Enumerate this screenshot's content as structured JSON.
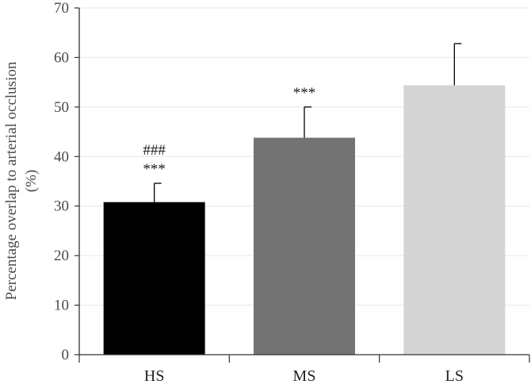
{
  "chart_data": {
    "type": "bar",
    "categories": [
      "HS",
      "MS",
      "LS"
    ],
    "values": [
      30.8,
      43.8,
      54.4
    ],
    "errors": [
      3.8,
      6.2,
      8.4
    ],
    "colors": [
      "#000000",
      "#737373",
      "#d4d4d4"
    ],
    "annotations": [
      [
        "###",
        "***"
      ],
      [
        "***"
      ],
      []
    ],
    "ylabel_lines": [
      "Percentage overlap to arterial occlusion",
      "(%)"
    ],
    "xlabel": "",
    "title": "",
    "ylim": [
      0,
      70
    ],
    "yticks": [
      0,
      10,
      20,
      30,
      40,
      50,
      60,
      70
    ],
    "grid": true,
    "grid_color": "#e6e6e6",
    "axis_color": "#333333"
  }
}
